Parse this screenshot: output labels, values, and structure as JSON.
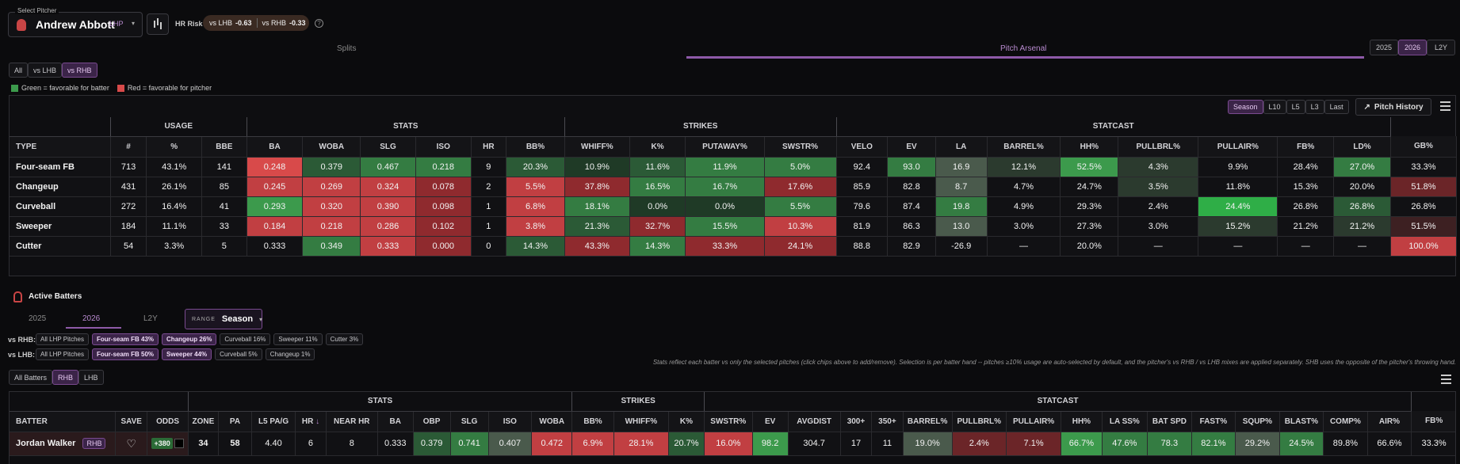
{
  "header": {
    "select_label": "Select Pitcher",
    "pitcher": "Andrew Abbott",
    "hand": "LHP",
    "hr_risk_label": "HR Risk",
    "vs_lhb": "vs LHB",
    "vs_lhb_val": "-0.63",
    "vs_rhb": "vs RHB",
    "vs_rhb_val": "-0.33"
  },
  "tabs": {
    "splits": "Splits",
    "arsenal": "Pitch Arsenal"
  },
  "years": [
    "2025",
    "2026",
    "L2Y"
  ],
  "split_filter": [
    "All",
    "vs LHB",
    "vs RHB"
  ],
  "legend": {
    "green": "Green = favorable for batter",
    "red": "Red = favorable for pitcher"
  },
  "range_tabs": [
    "Season",
    "L10",
    "L5",
    "L3",
    "Last"
  ],
  "pitch_history": "Pitch History",
  "arsenal": {
    "groups": [
      {
        "label": "",
        "span": 1
      },
      {
        "label": "USAGE",
        "span": 3
      },
      {
        "label": "STATS",
        "span": 6
      },
      {
        "label": "STRIKES",
        "span": 4
      },
      {
        "label": "STATCAST",
        "span": 9
      }
    ],
    "columns": [
      "TYPE",
      "#",
      "%",
      "BBE",
      "BA",
      "WOBA",
      "SLG",
      "ISO",
      "HR",
      "BB%",
      "WHIFF%",
      "K%",
      "PUTAWAY%",
      "SWSTR%",
      "VELO",
      "EV",
      "LA",
      "BARREL%",
      "HH%",
      "PULLBRL%",
      "PULLAIR%",
      "FB%",
      "LD%",
      "GB%"
    ],
    "rows": [
      [
        "Four-seam FB",
        "713",
        "43.1%",
        "141",
        "0.248",
        "0.379",
        "0.467",
        "0.218",
        "9",
        "20.3%",
        "10.9%",
        "11.6%",
        "11.9%",
        "5.0%",
        "92.4",
        "93.0",
        "16.9",
        "12.1%",
        "52.5%",
        "4.3%",
        "9.9%",
        "28.4%",
        "27.0%",
        "33.3%"
      ],
      [
        "Changeup",
        "431",
        "26.1%",
        "85",
        "0.245",
        "0.269",
        "0.324",
        "0.078",
        "2",
        "5.5%",
        "37.8%",
        "16.5%",
        "16.7%",
        "17.6%",
        "85.9",
        "82.8",
        "8.7",
        "4.7%",
        "24.7%",
        "3.5%",
        "11.8%",
        "15.3%",
        "20.0%",
        "51.8%"
      ],
      [
        "Curveball",
        "272",
        "16.4%",
        "41",
        "0.293",
        "0.320",
        "0.390",
        "0.098",
        "1",
        "6.8%",
        "18.1%",
        "0.0%",
        "0.0%",
        "5.5%",
        "79.6",
        "87.4",
        "19.8",
        "4.9%",
        "29.3%",
        "2.4%",
        "24.4%",
        "26.8%",
        "26.8%",
        "26.8%"
      ],
      [
        "Sweeper",
        "184",
        "11.1%",
        "33",
        "0.184",
        "0.218",
        "0.286",
        "0.102",
        "1",
        "3.8%",
        "21.3%",
        "32.7%",
        "15.5%",
        "10.3%",
        "81.9",
        "86.3",
        "13.0",
        "3.0%",
        "27.3%",
        "3.0%",
        "15.2%",
        "21.2%",
        "21.2%",
        "51.5%"
      ],
      [
        "Cutter",
        "54",
        "3.3%",
        "5",
        "0.333",
        "0.349",
        "0.333",
        "0.000",
        "0",
        "14.3%",
        "43.3%",
        "14.3%",
        "33.3%",
        "24.1%",
        "88.8",
        "82.9",
        "-26.9",
        "—",
        "20.0%",
        "—",
        "—",
        "—",
        "—",
        "100.0%"
      ]
    ]
  },
  "active": {
    "title": "Active Batters",
    "years": [
      "2025",
      "2026",
      "L2Y"
    ],
    "range_label": "RANGE",
    "range_val": "Season",
    "rhb_label": "vs RHB:",
    "rhb_chips": [
      "All LHP Pitches",
      "Four-seam FB 43%",
      "Changeup 26%",
      "Curveball 16%",
      "Sweeper 11%",
      "Cutter 3%"
    ],
    "lhb_label": "vs LHB:",
    "lhb_chips": [
      "All LHP Pitches",
      "Four-seam FB 50%",
      "Sweeper 44%",
      "Curveball 5%",
      "Changeup 1%"
    ],
    "note": "Stats reflect each batter vs only the selected pitches (click chips above to add/remove). Selection is per batter hand -- pitches ≥10% usage are auto-selected by default, and the pitcher's vs RHB / vs LHB mixes are applied separately. SHB uses the opposite of the pitcher's throwing hand.",
    "filter": [
      "All Batters",
      "RHB",
      "LHB"
    ]
  },
  "batters": {
    "groups": [
      {
        "label": "",
        "span": 3
      },
      {
        "label": "STATS",
        "span": 10
      },
      {
        "label": "STRIKES",
        "span": 3
      },
      {
        "label": "STATCAST",
        "span": 16
      }
    ],
    "columns": [
      "BATTER",
      "SAVE",
      "ODDS",
      "ZONE",
      "PA",
      "L5 PA/G",
      "HR",
      "NEAR HR",
      "BA",
      "OBP",
      "SLG",
      "ISO",
      "WOBA",
      "BB%",
      "WHIFF%",
      "K%",
      "SWSTR%",
      "EV",
      "AVGDIST",
      "300+",
      "350+",
      "BARREL%",
      "PULLBRL%",
      "PULLAIR%",
      "HH%",
      "LA SS%",
      "BAT SPD",
      "FAST%",
      "SQUP%",
      "BLAST%",
      "COMP%",
      "AIR%",
      "FB%"
    ],
    "row": {
      "name": "Jordan Walker",
      "hand": "RHB",
      "odds": "+380",
      "values": [
        "34",
        "58",
        "4.40",
        "6",
        "8",
        "0.333",
        "0.379",
        "0.741",
        "0.407",
        "0.472",
        "6.9%",
        "28.1%",
        "20.7%",
        "16.0%",
        "98.2",
        "304.7",
        "17",
        "11",
        "19.0%",
        "2.4%",
        "7.1%",
        "66.7%",
        "47.6%",
        "78.3",
        "82.1%",
        "29.2%",
        "24.5%",
        "89.8%",
        "66.6%",
        "33.3%"
      ]
    }
  }
}
